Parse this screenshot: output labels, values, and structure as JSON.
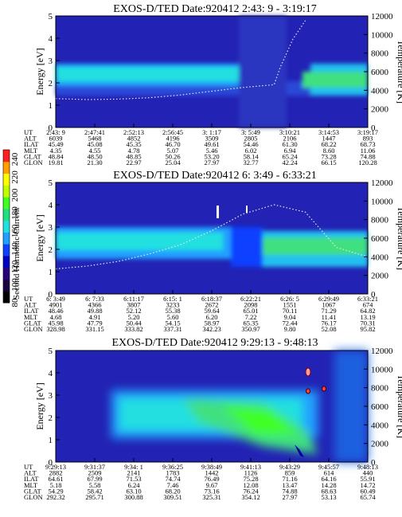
{
  "colors": {
    "background": "#2222b4",
    "cbar": [
      "#000000",
      "#1a0040",
      "#2a007a",
      "#0000c0",
      "#1040ff",
      "#20a0ff",
      "#20e0e0",
      "#20e080",
      "#40ff20",
      "#c0ff00",
      "#ffff00",
      "#ffa000",
      "#ff2020"
    ],
    "electron_temperature": "#e8e8e8"
  },
  "chart_data": [
    {
      "type": "heatmap",
      "title": "EXOS-D/TED   Date:920412   2:43: 9 - 3:19:17",
      "ylabel": "Energy [eV]",
      "ylabel_right": "Temperature [K]",
      "ylim": [
        0,
        5
      ],
      "ylim_right": [
        0,
        12000
      ],
      "yticks": [
        "0",
        "1",
        "2",
        "3",
        "4",
        "5"
      ],
      "yticks_right": [
        "0",
        "2000",
        "4000",
        "6000",
        "8000",
        "10000",
        "12000"
      ],
      "ephemeris_labels": [
        "UT",
        "ALT",
        "ILAT",
        "MLT",
        "GLAT",
        "GLON"
      ],
      "ephemeris_columns": [
        [
          "2:43: 9",
          "6039",
          "45.49",
          "4.35",
          "48.84",
          "19.81"
        ],
        [
          "2:47:41",
          "5468",
          "45.08",
          "4.55",
          "48.50",
          "21.30"
        ],
        [
          "2:52:13",
          "4852",
          "45.35",
          "4.78",
          "48.85",
          "22.97"
        ],
        [
          "2:56:45",
          "4196",
          "46.70",
          "5.07",
          "50.26",
          "25.04"
        ],
        [
          "3: 1:17",
          "3509",
          "49.61",
          "5.46",
          "53.20",
          "27.97"
        ],
        [
          "3: 5:49",
          "2805",
          "54.46",
          "6.02",
          "58.14",
          "32.77"
        ],
        [
          "3:10:21",
          "2106",
          "61.30",
          "6.94",
          "65.24",
          "42.24"
        ],
        [
          "3:14:53",
          "1447",
          "68.22",
          "8.60",
          "73.28",
          "66.15"
        ],
        [
          "3:19:17",
          "893",
          "68.73",
          "11.06",
          "74.88",
          "120.28"
        ]
      ],
      "temperature_trace": [
        [
          0,
          3100
        ],
        [
          0.1,
          3000
        ],
        [
          0.2,
          3050
        ],
        [
          0.3,
          3200
        ],
        [
          0.4,
          3500
        ],
        [
          0.5,
          3900
        ],
        [
          0.6,
          4300
        ],
        [
          0.7,
          4600
        ],
        [
          0.72,
          6500
        ],
        [
          0.76,
          9500
        ],
        [
          0.8,
          11500
        ]
      ]
    },
    {
      "type": "heatmap",
      "title": "EXOS-D/TED   Date:920412   6: 3:49 - 6:33:21",
      "ylabel": "Energy [eV]",
      "ylabel_right": "Temperature [K]",
      "ylim": [
        0,
        5
      ],
      "ylim_right": [
        0,
        12000
      ],
      "yticks": [
        "0",
        "1",
        "2",
        "3",
        "4",
        "5"
      ],
      "yticks_right": [
        "0",
        "2000",
        "4000",
        "6000",
        "8000",
        "10000",
        "12000"
      ],
      "ephemeris_labels": [
        "UT",
        "ALT",
        "ILAT",
        "MLT",
        "GLAT",
        "GLON"
      ],
      "ephemeris_columns": [
        [
          "6: 3:49",
          "4901",
          "48.46",
          "4.68",
          "45.98",
          "328.98"
        ],
        [
          "6: 7:33",
          "4366",
          "49.88",
          "4.91",
          "47.79",
          "331.15"
        ],
        [
          "6:11:17",
          "3807",
          "52.12",
          "5.20",
          "50.44",
          "333.82"
        ],
        [
          "6:15: 1",
          "3233",
          "55.38",
          "5.60",
          "54.15",
          "337.31"
        ],
        [
          "6:18:37",
          "2672",
          "59.64",
          "6.20",
          "58.97",
          "342.23"
        ],
        [
          "6:22:21",
          "2098",
          "65.01",
          "7.22",
          "65.35",
          "350.97"
        ],
        [
          "6:26: 5",
          "1551",
          "70.11",
          "9.04",
          "72.44",
          "9.80"
        ],
        [
          "6:29:49",
          "1067",
          "71.29",
          "11.41",
          "76.17",
          "52.08"
        ],
        [
          "6:33:21",
          "674",
          "64.82",
          "13.19",
          "70.31",
          "95.82"
        ]
      ],
      "colorbar": {
        "label": "Second Harmonic Current",
        "ticks": [
          "80",
          "100",
          "120",
          "140",
          "160",
          "180",
          "200",
          "220",
          "240"
        ]
      },
      "temperature_trace": [
        [
          0,
          2700
        ],
        [
          0.1,
          3000
        ],
        [
          0.2,
          3500
        ],
        [
          0.3,
          4300
        ],
        [
          0.4,
          5300
        ],
        [
          0.5,
          6800
        ],
        [
          0.6,
          8600
        ],
        [
          0.7,
          9600
        ],
        [
          0.8,
          8800
        ],
        [
          0.9,
          5000
        ],
        [
          1,
          4000
        ]
      ]
    },
    {
      "type": "heatmap",
      "title": "EXOS-D/TED   Date:920412   9:29:13 - 9:48:13",
      "ylabel": "Energy [eV]",
      "ylabel_right": "Temperature [K]",
      "ylim": [
        0,
        5
      ],
      "ylim_right": [
        0,
        12000
      ],
      "yticks": [
        "0",
        "1",
        "2",
        "3",
        "4",
        "5"
      ],
      "yticks_right": [
        "0",
        "2000",
        "4000",
        "6000",
        "8000",
        "10000",
        "12000"
      ],
      "ephemeris_labels": [
        "UT",
        "ALT",
        "ILAT",
        "MLT",
        "GLAT",
        "GLON"
      ],
      "ephemeris_columns": [
        [
          "9:29:13",
          "2882",
          "64.61",
          "5.18",
          "54.29",
          "292.32"
        ],
        [
          "9:31:37",
          "2509",
          "67.99",
          "5.58",
          "58.42",
          "295.71"
        ],
        [
          "9:34: 1",
          "2141",
          "71.53",
          "6.24",
          "63.10",
          "300.88"
        ],
        [
          "9:36:25",
          "1783",
          "74.74",
          "7.46",
          "68.20",
          "309.51"
        ],
        [
          "9:38:49",
          "1442",
          "76.49",
          "9.67",
          "73.16",
          "325.31"
        ],
        [
          "9:41:13",
          "1126",
          "75.28",
          "12.08",
          "76.24",
          "354.12"
        ],
        [
          "9:43:29",
          "859",
          "71.16",
          "13.47",
          "74.88",
          "27.97"
        ],
        [
          "9:45:57",
          "614",
          "64.16",
          "14.28",
          "68.63",
          "53.13"
        ],
        [
          "9:48:13",
          "440",
          "55.91",
          "14.72",
          "60.49",
          "65.74"
        ]
      ]
    }
  ]
}
